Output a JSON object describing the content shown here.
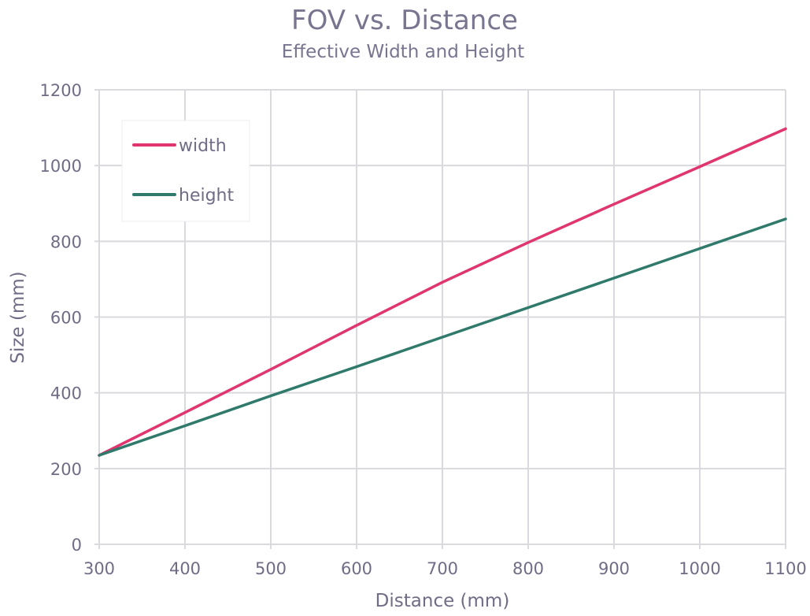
{
  "chart_data": {
    "type": "line",
    "title": "FOV vs. Distance",
    "subtitle": "Effective Width and Height",
    "xlabel": "Distance (mm)",
    "ylabel": "Size (mm)",
    "xlim": [
      300,
      1100
    ],
    "ylim": [
      0,
      1200
    ],
    "xticks": [
      300,
      400,
      500,
      600,
      700,
      800,
      900,
      1000,
      1100
    ],
    "yticks": [
      0,
      200,
      400,
      600,
      800,
      1000,
      1200
    ],
    "grid": true,
    "legend_position": "top-left",
    "series": [
      {
        "name": "width",
        "color": "#e0356f",
        "x": [
          300,
          400,
          500,
          600,
          700,
          800,
          900,
          1000,
          1100
        ],
        "y": [
          235,
          348,
          462,
          578,
          692,
          797,
          898,
          997,
          1097
        ]
      },
      {
        "name": "height",
        "color": "#2f7a6b",
        "x": [
          300,
          400,
          500,
          600,
          700,
          800,
          900,
          1000,
          1100
        ],
        "y": [
          235,
          313,
          392,
          469,
          547,
          625,
          703,
          781,
          859
        ]
      }
    ]
  }
}
